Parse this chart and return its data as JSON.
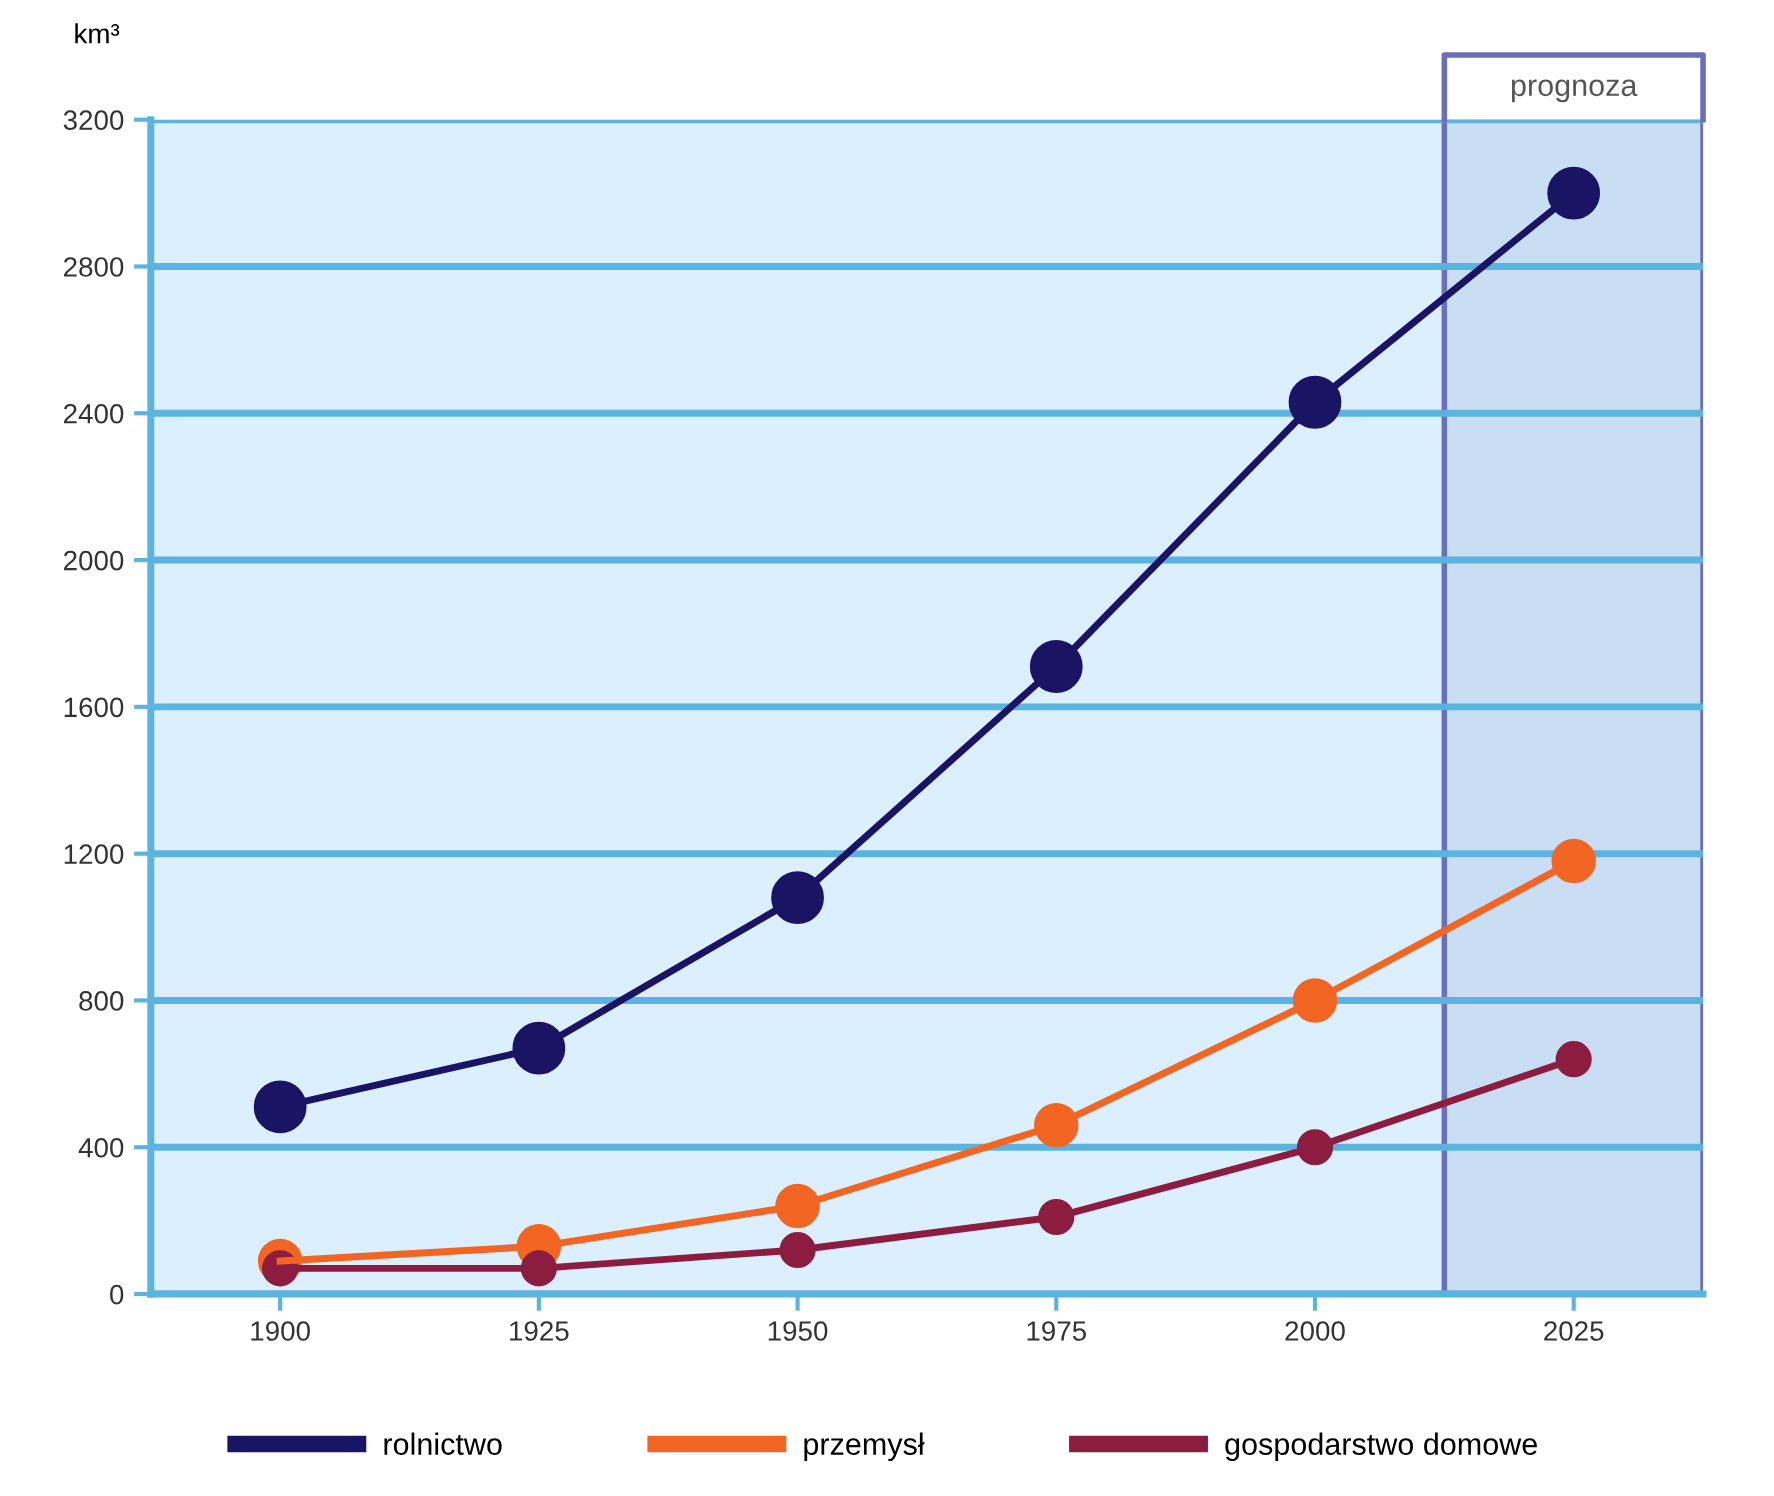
{
  "chart_data": {
    "type": "line",
    "ylabel": "km³",
    "categories": [
      "1900",
      "1925",
      "1950",
      "1975",
      "2000",
      "2025"
    ],
    "series": [
      {
        "name": "rolnictwo",
        "color": "#1a1464",
        "values": [
          510,
          670,
          1080,
          1710,
          2430,
          3000
        ]
      },
      {
        "name": "przemysł",
        "color": "#f26522",
        "values": [
          90,
          130,
          240,
          460,
          800,
          1180
        ]
      },
      {
        "name": "gospodarstwo domowe",
        "color": "#8c1d40",
        "values": [
          70,
          70,
          120,
          210,
          400,
          640
        ]
      }
    ],
    "ylim": [
      0,
      3200
    ],
    "yticks": [
      0,
      400,
      800,
      1200,
      1600,
      2000,
      2400,
      2800,
      3200
    ],
    "bands": [
      {
        "axis": "x",
        "from": "2025",
        "to": "2025",
        "label": "prognoza",
        "color": "#c9def2"
      }
    ],
    "grid": "y",
    "legend": "bottom",
    "marker": "circle",
    "line_style": "solid"
  }
}
